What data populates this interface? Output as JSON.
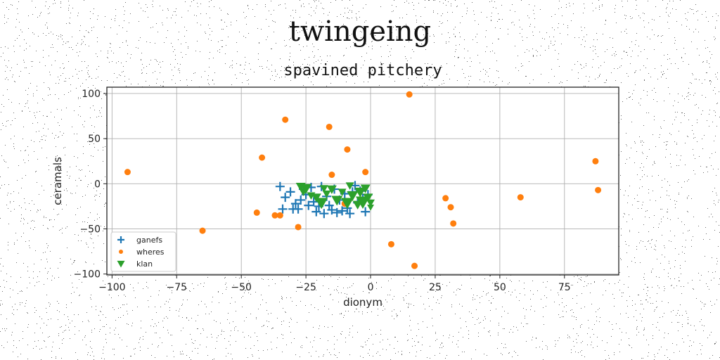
{
  "chart_data": {
    "type": "scatter",
    "suptitle": "twingeing",
    "title": "spavined pitchery",
    "xlabel": "dionym",
    "ylabel": "ceramals",
    "xlim": [
      -102,
      96
    ],
    "ylim": [
      -101,
      107
    ],
    "xticks": [
      -100,
      -75,
      -50,
      -25,
      0,
      25,
      50,
      75
    ],
    "yticks": [
      -100,
      -50,
      0,
      50,
      100
    ],
    "grid": true,
    "legend_position": "lower-left",
    "series": [
      {
        "name": "ganefs",
        "marker": "plus",
        "color": "#1f77b4",
        "points": [
          [
            -35,
            -3
          ],
          [
            -33,
            -15
          ],
          [
            -31,
            -9
          ],
          [
            -29,
            -22
          ],
          [
            -28,
            -28
          ],
          [
            -27,
            -18
          ],
          [
            -25,
            -12
          ],
          [
            -23,
            -4
          ],
          [
            -22,
            -20
          ],
          [
            -21,
            -31
          ],
          [
            -20,
            -25
          ],
          [
            -19,
            -3
          ],
          [
            -17,
            -14
          ],
          [
            -16,
            -24
          ],
          [
            -15,
            -29
          ],
          [
            -14,
            -6
          ],
          [
            -13,
            -32
          ],
          [
            -12,
            -18
          ],
          [
            -11,
            -30
          ],
          [
            -10,
            -11
          ],
          [
            -9,
            -27
          ],
          [
            -8,
            -33
          ],
          [
            -7,
            -9
          ],
          [
            -6,
            -2
          ],
          [
            -5,
            -21
          ],
          [
            -3,
            -16
          ],
          [
            -2,
            -31
          ],
          [
            -1,
            -12
          ],
          [
            -24,
            -24
          ],
          [
            -30,
            -28
          ],
          [
            -26,
            -6
          ],
          [
            -18,
            -33
          ],
          [
            -34,
            -28
          ],
          [
            -4,
            -8
          ]
        ]
      },
      {
        "name": "wheres",
        "marker": "circle",
        "color": "#ff7f0e",
        "points": [
          [
            -94,
            13
          ],
          [
            -65,
            -52
          ],
          [
            -44,
            -32
          ],
          [
            -42,
            29
          ],
          [
            -33,
            71
          ],
          [
            -37,
            -35
          ],
          [
            -28,
            -48
          ],
          [
            -16,
            63
          ],
          [
            -15,
            10
          ],
          [
            -9,
            38
          ],
          [
            -2,
            13
          ],
          [
            15,
            99
          ],
          [
            8,
            -67
          ],
          [
            17,
            -91
          ],
          [
            29,
            -16
          ],
          [
            31,
            -26
          ],
          [
            32,
            -44
          ],
          [
            58,
            -15
          ],
          [
            87,
            25
          ],
          [
            88,
            -7
          ],
          [
            -35,
            -35
          ],
          [
            -10,
            -22
          ]
        ]
      },
      {
        "name": "klan",
        "marker": "triangle-down",
        "color": "#2ca02c",
        "points": [
          [
            -27,
            -3,
            14
          ],
          [
            -25,
            -5,
            16
          ],
          [
            -23,
            -13,
            12
          ],
          [
            -21,
            -15,
            14
          ],
          [
            -19,
            -21,
            18
          ],
          [
            -17,
            -11,
            12
          ],
          [
            -15,
            -6,
            14
          ],
          [
            -13,
            -18,
            16
          ],
          [
            -11,
            -9,
            12
          ],
          [
            -9,
            -21,
            18
          ],
          [
            -7,
            -13,
            16
          ],
          [
            -5,
            -23,
            14
          ],
          [
            -4,
            -9,
            16
          ],
          [
            -3,
            -20,
            20
          ],
          [
            -1,
            -15,
            14
          ],
          [
            0,
            -21,
            12
          ],
          [
            -2,
            -5,
            14
          ],
          [
            -26,
            -9,
            12
          ],
          [
            -18,
            -5,
            12
          ],
          [
            -8,
            -2,
            12
          ],
          [
            0,
            -26,
            10
          ]
        ]
      }
    ]
  }
}
